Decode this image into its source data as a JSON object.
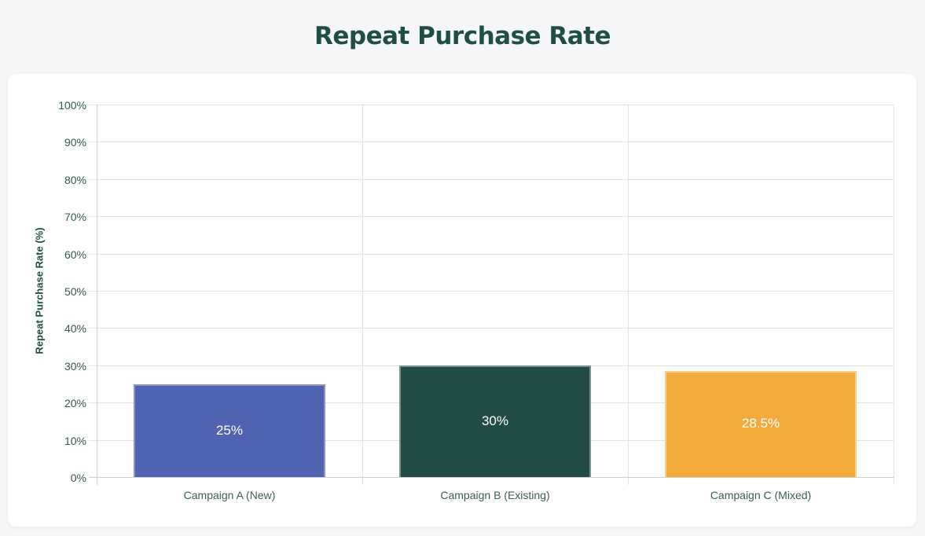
{
  "page": {
    "title": "Repeat Purchase Rate"
  },
  "chart_data": {
    "type": "bar",
    "title": "Repeat Purchase Rate",
    "xlabel": "",
    "ylabel": "Repeat Purchase Rate (%)",
    "ylim": [
      0,
      100
    ],
    "yticks": [
      "0%",
      "10%",
      "20%",
      "30%",
      "40%",
      "50%",
      "60%",
      "70%",
      "80%",
      "90%",
      "100%"
    ],
    "categories": [
      "Campaign A (New)",
      "Campaign B (Existing)",
      "Campaign C (Mixed)"
    ],
    "values": [
      25,
      30,
      28.5
    ],
    "value_labels": [
      "25%",
      "30%",
      "28.5%"
    ],
    "colors": [
      "#5063b1",
      "#214d46",
      "#f2aa3c"
    ],
    "border_colors": [
      "#8a95c8",
      "#7a9490",
      "#f7cf8d"
    ],
    "grid": true,
    "legend": "none"
  }
}
